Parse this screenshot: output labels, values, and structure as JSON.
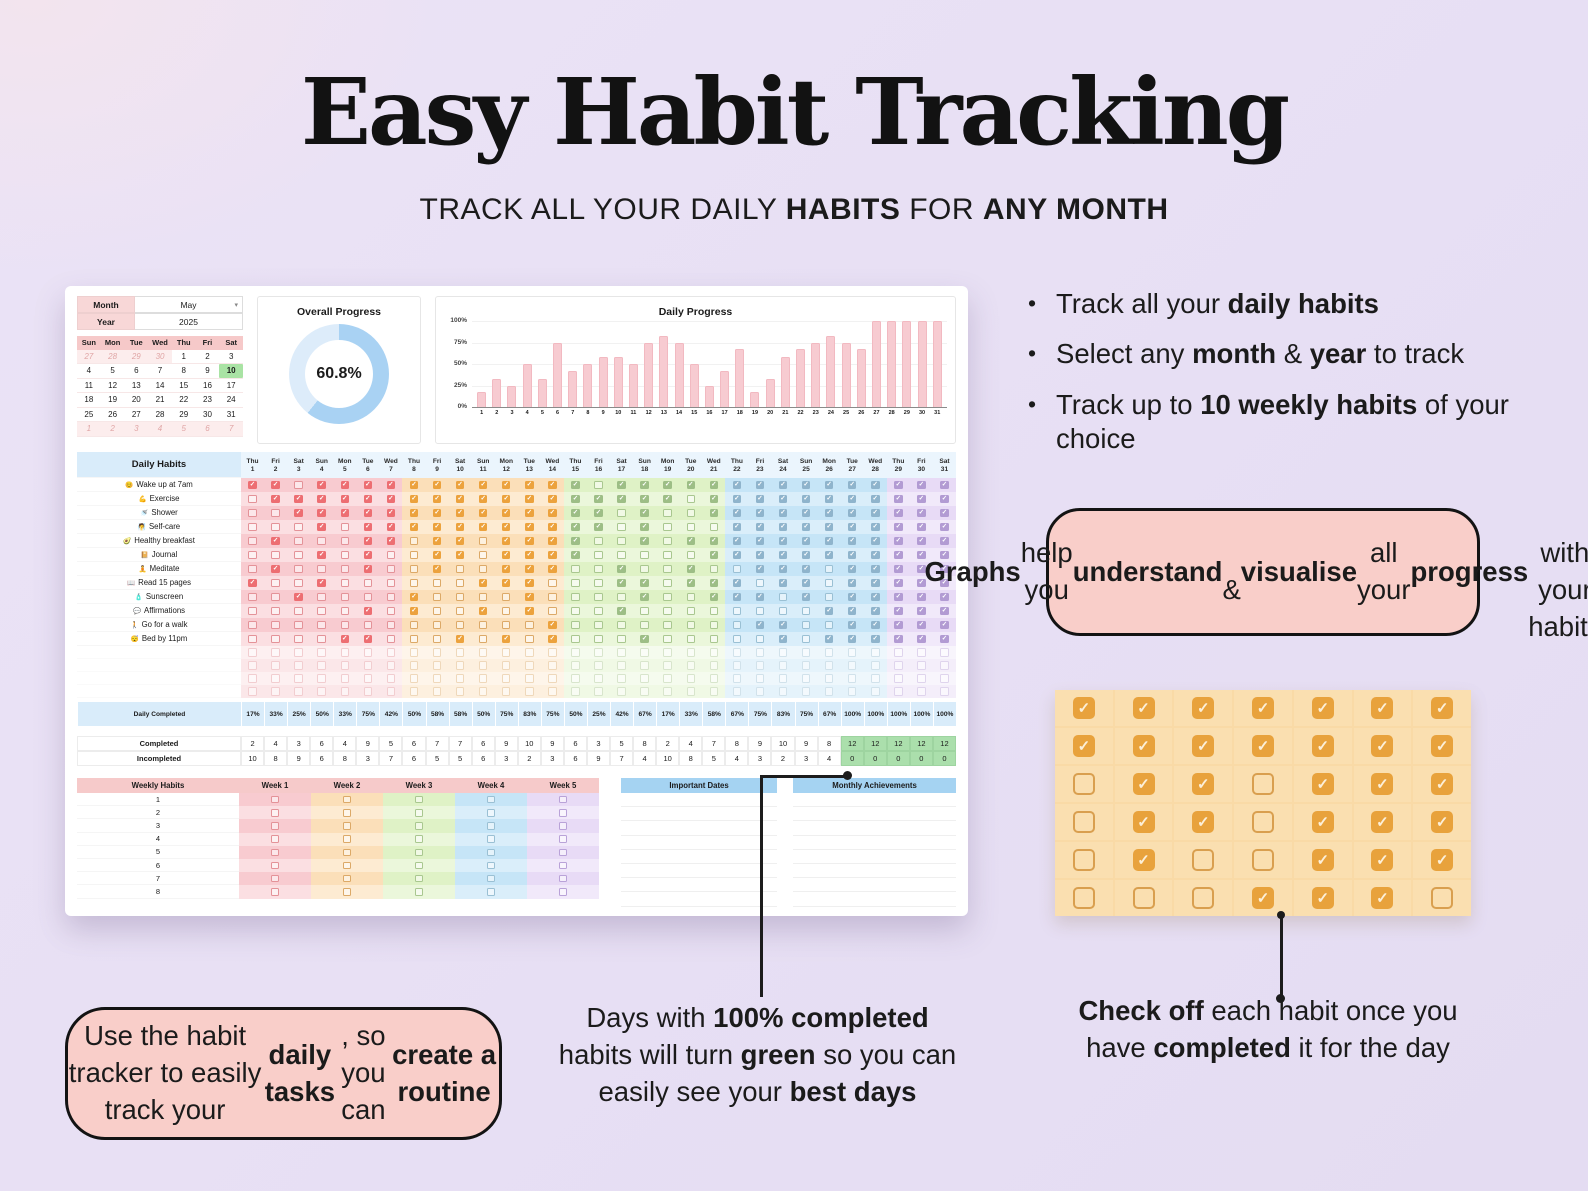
{
  "page": {
    "title": "Easy Habit Tracking",
    "subtitle_segments": [
      {
        "t": "TRACK ALL YOUR DAILY "
      },
      {
        "t": "HABITS",
        "b": true
      },
      {
        "t": " FOR "
      },
      {
        "t": "ANY MONTH",
        "b": true
      }
    ]
  },
  "bullets": [
    {
      "segments": [
        {
          "t": "Track all your "
        },
        {
          "t": "daily habits",
          "b": true
        }
      ]
    },
    {
      "segments": [
        {
          "t": "Select any "
        },
        {
          "t": "month",
          "b": true
        },
        {
          "t": " & "
        },
        {
          "t": "year",
          "b": true
        },
        {
          "t": " to track"
        }
      ]
    },
    {
      "segments": [
        {
          "t": "Track up to "
        },
        {
          "t": "10 weekly habits",
          "b": true
        },
        {
          "t": " of your choice"
        }
      ]
    }
  ],
  "callouts": {
    "graphs": {
      "segments": [
        {
          "t": "Graphs",
          "b": true
        },
        {
          "t": " help you "
        },
        {
          "t": "understand",
          "b": true
        },
        {
          "t": "\n& "
        },
        {
          "t": "visualise",
          "b": true
        },
        {
          "t": " all your "
        },
        {
          "t": "progress",
          "b": true
        },
        {
          "t": "\nwith your habits"
        }
      ]
    },
    "tracker": {
      "segments": [
        {
          "t": "Use the habit tracker to easily\ntrack your "
        },
        {
          "t": "daily tasks",
          "b": true
        },
        {
          "t": ", so you\ncan "
        },
        {
          "t": "create a routine",
          "b": true
        }
      ]
    },
    "green_days": {
      "segments": [
        {
          "t": "Days with "
        },
        {
          "t": "100% completed",
          "b": true
        },
        {
          "t": "\nhabits will turn "
        },
        {
          "t": "green",
          "b": true
        },
        {
          "t": " so you can\neasily see your "
        },
        {
          "t": "best days",
          "b": true
        }
      ]
    },
    "check_off": {
      "segments": [
        {
          "t": "Check off",
          "b": true
        },
        {
          "t": " each habit once you\nhave "
        },
        {
          "t": "completed",
          "b": true
        },
        {
          "t": " it for the day"
        }
      ]
    }
  },
  "chart_data": [
    {
      "type": "pie",
      "title": "Overall Progress",
      "labels": [
        "Complete",
        "Remaining"
      ],
      "values": [
        60.8,
        39.2
      ],
      "center_label": "60.8%",
      "colors": [
        "#A9D2F3",
        "#DDECFA"
      ]
    },
    {
      "type": "bar",
      "title": "Daily Progress",
      "categories": [
        "1",
        "2",
        "3",
        "4",
        "5",
        "6",
        "7",
        "8",
        "9",
        "10",
        "11",
        "12",
        "13",
        "14",
        "15",
        "16",
        "17",
        "18",
        "19",
        "20",
        "21",
        "22",
        "23",
        "24",
        "25",
        "26",
        "27",
        "28",
        "29",
        "30",
        "31"
      ],
      "values": [
        17,
        33,
        25,
        50,
        33,
        75,
        42,
        50,
        58,
        58,
        50,
        75,
        83,
        75,
        50,
        25,
        42,
        67,
        17,
        33,
        58,
        67,
        75,
        83,
        75,
        67,
        100,
        100,
        100,
        100,
        100
      ],
      "yticks": [
        "0%",
        "25%",
        "50%",
        "75%",
        "100%"
      ],
      "ylim": [
        0,
        100
      ],
      "grid": true,
      "bar_color": "#F7CBD1"
    }
  ],
  "spreadsheet": {
    "month_label": "Month",
    "month_value": "May",
    "year_label": "Year",
    "year_value": "2025",
    "calendar": {
      "dow": [
        "Sun",
        "Mon",
        "Tue",
        "Wed",
        "Thu",
        "Fri",
        "Sat"
      ],
      "weeks": [
        [
          {
            "d": "27",
            "f": "m"
          },
          {
            "d": "28",
            "f": "m"
          },
          {
            "d": "29",
            "f": "m"
          },
          {
            "d": "30",
            "f": "m"
          },
          {
            "d": "1"
          },
          {
            "d": "2"
          },
          {
            "d": "3"
          }
        ],
        [
          {
            "d": "4"
          },
          {
            "d": "5"
          },
          {
            "d": "6"
          },
          {
            "d": "7"
          },
          {
            "d": "8"
          },
          {
            "d": "9"
          },
          {
            "d": "10",
            "f": "t"
          }
        ],
        [
          {
            "d": "11"
          },
          {
            "d": "12"
          },
          {
            "d": "13"
          },
          {
            "d": "14"
          },
          {
            "d": "15"
          },
          {
            "d": "16"
          },
          {
            "d": "17"
          }
        ],
        [
          {
            "d": "18"
          },
          {
            "d": "19"
          },
          {
            "d": "20"
          },
          {
            "d": "21"
          },
          {
            "d": "22"
          },
          {
            "d": "23"
          },
          {
            "d": "24"
          }
        ],
        [
          {
            "d": "25"
          },
          {
            "d": "26"
          },
          {
            "d": "27"
          },
          {
            "d": "28"
          },
          {
            "d": "29"
          },
          {
            "d": "30"
          },
          {
            "d": "31"
          }
        ],
        [
          {
            "d": "1",
            "f": "m"
          },
          {
            "d": "2",
            "f": "m"
          },
          {
            "d": "3",
            "f": "m"
          },
          {
            "d": "4",
            "f": "m"
          },
          {
            "d": "5",
            "f": "m"
          },
          {
            "d": "6",
            "f": "m"
          },
          {
            "d": "7",
            "f": "m"
          }
        ]
      ]
    },
    "habits_table": {
      "title": "Daily Habits",
      "day_dows": [
        "Thu",
        "Fri",
        "Sat",
        "Sun",
        "Mon",
        "Tue",
        "Wed",
        "Thu",
        "Fri",
        "Sat",
        "Sun",
        "Mon",
        "Tue",
        "Wed",
        "Thu",
        "Fri",
        "Sat",
        "Sun",
        "Mon",
        "Tue",
        "Wed",
        "Thu",
        "Fri",
        "Sat",
        "Sun",
        "Mon",
        "Tue",
        "Wed",
        "Thu",
        "Fri",
        "Sat"
      ],
      "day_nums": [
        "1",
        "2",
        "3",
        "4",
        "5",
        "6",
        "7",
        "8",
        "9",
        "10",
        "11",
        "12",
        "13",
        "14",
        "15",
        "16",
        "17",
        "18",
        "19",
        "20",
        "21",
        "22",
        "23",
        "24",
        "25",
        "26",
        "27",
        "28",
        "29",
        "30",
        "31"
      ],
      "habits": [
        {
          "emoji": "😊",
          "label": "Wake up at 7am",
          "states": "1101111111111110111111111111111"
        },
        {
          "emoji": "💪",
          "label": "Exercise",
          "states": "0111111111111111111011111111111"
        },
        {
          "emoji": "🚿",
          "label": "Shower",
          "states": "0011111111111111010011111111111"
        },
        {
          "emoji": "🧖",
          "label": "Self-care",
          "states": "0001011111111111010001111111111"
        },
        {
          "emoji": "🥑",
          "label": "Healthy breakfast",
          "states": "0100011011011110010111111111111"
        },
        {
          "emoji": "📔",
          "label": "Journal",
          "states": "0001010011011110000011111111111"
        },
        {
          "emoji": "🧘",
          "label": "Meditate",
          "states": "0100010010011100100100111011111"
        },
        {
          "emoji": "📖",
          "label": "Read 15 pages",
          "states": "1001000000111000110111011011111"
        },
        {
          "emoji": "🧴",
          "label": "Sunscreen",
          "states": "0010000100001000010011101011111"
        },
        {
          "emoji": "💬",
          "label": "Affirmations",
          "states": "0000010100101000100000000111111"
        },
        {
          "emoji": "🚶",
          "label": "Go for a walk",
          "states": "0000000000000100000000110011111"
        },
        {
          "emoji": "😴",
          "label": "Bed by 11pm",
          "states": "0000110001010100010000010111111"
        }
      ],
      "empty_rows": 4,
      "daily_completed_label": "Daily Completed",
      "daily_completed": [
        "17%",
        "33%",
        "25%",
        "50%",
        "33%",
        "75%",
        "42%",
        "50%",
        "58%",
        "58%",
        "50%",
        "75%",
        "83%",
        "75%",
        "50%",
        "25%",
        "42%",
        "67%",
        "17%",
        "33%",
        "58%",
        "67%",
        "75%",
        "83%",
        "75%",
        "67%",
        "100%",
        "100%",
        "100%",
        "100%",
        "100%"
      ],
      "completed_label": "Completed",
      "incompleted_label": "Incompleted",
      "completed": [
        "2",
        "4",
        "3",
        "6",
        "4",
        "9",
        "5",
        "6",
        "7",
        "7",
        "6",
        "9",
        "10",
        "9",
        "6",
        "3",
        "5",
        "8",
        "2",
        "4",
        "7",
        "8",
        "9",
        "10",
        "9",
        "8",
        "12",
        "12",
        "12",
        "12",
        "12"
      ],
      "incompleted": [
        "10",
        "8",
        "9",
        "6",
        "8",
        "3",
        "7",
        "6",
        "5",
        "5",
        "6",
        "3",
        "2",
        "3",
        "6",
        "9",
        "7",
        "4",
        "10",
        "8",
        "5",
        "4",
        "3",
        "2",
        "3",
        "4",
        "0",
        "0",
        "0",
        "0",
        "0"
      ],
      "green_from_index": 26
    },
    "weekly": {
      "title": "Weekly Habits",
      "weeks": [
        "Week 1",
        "Week 2",
        "Week 3",
        "Week 4",
        "Week 5"
      ],
      "rows": [
        "1",
        "2",
        "3",
        "4",
        "5",
        "6",
        "7",
        "8"
      ]
    },
    "important_dates": {
      "title": "Important Dates",
      "row_count": 8
    },
    "monthly_achievements": {
      "title": "Monthly Achievements",
      "row_count": 8
    }
  },
  "check_grid": {
    "rows": [
      "1111111",
      "1111111",
      "0110111",
      "0110111",
      "0100111",
      "0001110"
    ]
  },
  "colors": {
    "page_bg": "#E7DFF3",
    "green_highlight": "#ABDFAC",
    "callout_pink": "#F9CEC9",
    "donut_fill": "#A9D2F3",
    "donut_track": "#DDECFA",
    "bar_pink": "#F7CBD1",
    "header_blue": "#D9ECFA",
    "header_blue_strong": "#A5D3F2",
    "label_pink": "#F6CACA",
    "grid_checked_orange": "#E8A23C",
    "weeks": [
      {
        "bg": "#F8CBD0",
        "bgAlt": "#FBDFE2",
        "checked": "#ED6E72",
        "border": "#E49298"
      },
      {
        "bg": "#FBDFB9",
        "bgAlt": "#FDEBD2",
        "checked": "#ECA23D",
        "border": "#DCA967"
      },
      {
        "bg": "#DFF2C6",
        "bgAlt": "#EBF7DB",
        "checked": "#9DBE86",
        "border": "#A9C78F"
      },
      {
        "bg": "#C6E5F7",
        "bgAlt": "#DAEEFA",
        "checked": "#8FB4CC",
        "border": "#9AC0D4"
      },
      {
        "bg": "#E8DBF6",
        "bgAlt": "#F1E9FA",
        "checked": "#B29BD3",
        "border": "#B9A2D8"
      }
    ]
  }
}
